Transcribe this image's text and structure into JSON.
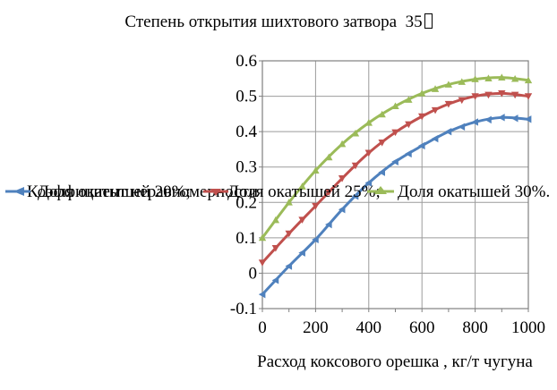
{
  "page": {
    "background": "#ffffff",
    "text_color": "#000000"
  },
  "chart_data": {
    "type": "line",
    "title": "Степень открытия шихтового затвора  35",
    "title_glyph": "▯",
    "xlabel": "Расход коксового орешка , кг/т чугуна",
    "ylabel": "Коэффициент неравномерности",
    "xlim": [
      0,
      1000
    ],
    "ylim": [
      -0.1,
      0.6
    ],
    "xticks": [
      0,
      200,
      400,
      600,
      800,
      1000
    ],
    "xtick_labels": [
      "0",
      "200",
      "400",
      "600",
      "800",
      "1000"
    ],
    "x_minor_step": 100,
    "yticks": [
      0.6,
      0.5,
      0.4,
      0.3,
      0.2,
      0.1,
      0,
      -0.1
    ],
    "ytick_labels": [
      "0.6",
      "0.5",
      "0.4",
      "0.3",
      "0.2",
      "0.1",
      "0",
      "-0.1"
    ],
    "grid": true,
    "grid_color": "#9b9b9b",
    "axis_color": "#808080",
    "legend_position": "overlay-middle-row",
    "x": [
      0,
      100,
      200,
      300,
      400,
      500,
      600,
      700,
      800,
      900,
      1000
    ],
    "series": [
      {
        "name": "Доля окатышей 20%;",
        "color": "#4f81bd",
        "marker": "triangle-left",
        "values": [
          -0.06,
          0.02,
          0.095,
          0.18,
          0.255,
          0.315,
          0.36,
          0.4,
          0.427,
          0.44,
          0.435
        ]
      },
      {
        "name": "Доля окатышей 25%;",
        "color": "#c0504d",
        "marker": "triangle-down",
        "values": [
          0.03,
          0.112,
          0.19,
          0.268,
          0.34,
          0.398,
          0.443,
          0.478,
          0.5,
          0.508,
          0.5
        ]
      },
      {
        "name": "Доля окатышей 30%.",
        "color": "#9bbb59",
        "marker": "triangle-up",
        "values": [
          0.1,
          0.2,
          0.29,
          0.365,
          0.425,
          0.472,
          0.508,
          0.533,
          0.548,
          0.553,
          0.545
        ]
      }
    ]
  }
}
